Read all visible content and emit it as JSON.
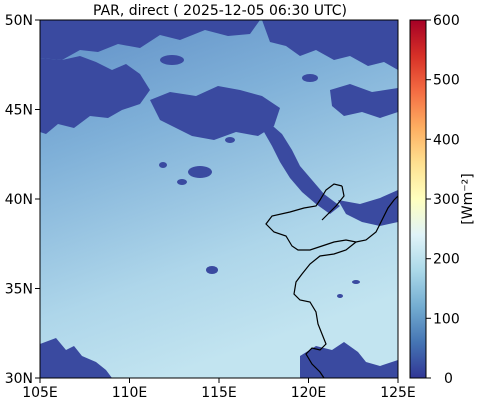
{
  "title": "PAR, direct ( 2025-12-05 06:30 UTC)",
  "map": {
    "lon_ticks": [
      "105E",
      "110E",
      "115E",
      "120E",
      "125E"
    ],
    "lat_ticks": [
      "50N",
      "45N",
      "40N",
      "35N",
      "30N"
    ],
    "extent": {
      "lon": [
        105,
        125
      ],
      "lat": [
        30,
        50
      ]
    }
  },
  "colorbar": {
    "label": "[Wm⁻²]",
    "ticks": [
      "600",
      "500",
      "400",
      "300",
      "200",
      "100",
      "0"
    ],
    "range": [
      0,
      600
    ],
    "colormap": "RdYlBu_r",
    "colors": [
      "#313695",
      "#4575b4",
      "#74add1",
      "#abd9e9",
      "#e0f3f8",
      "#ffffbf",
      "#fee090",
      "#fdae61",
      "#f46d43",
      "#d73027",
      "#a50026"
    ]
  },
  "colors": {
    "cloud": "#3a4aa0",
    "clear_north": "#6f9fce",
    "clear_south": "#bfe2ef",
    "coastline": "#000000"
  }
}
